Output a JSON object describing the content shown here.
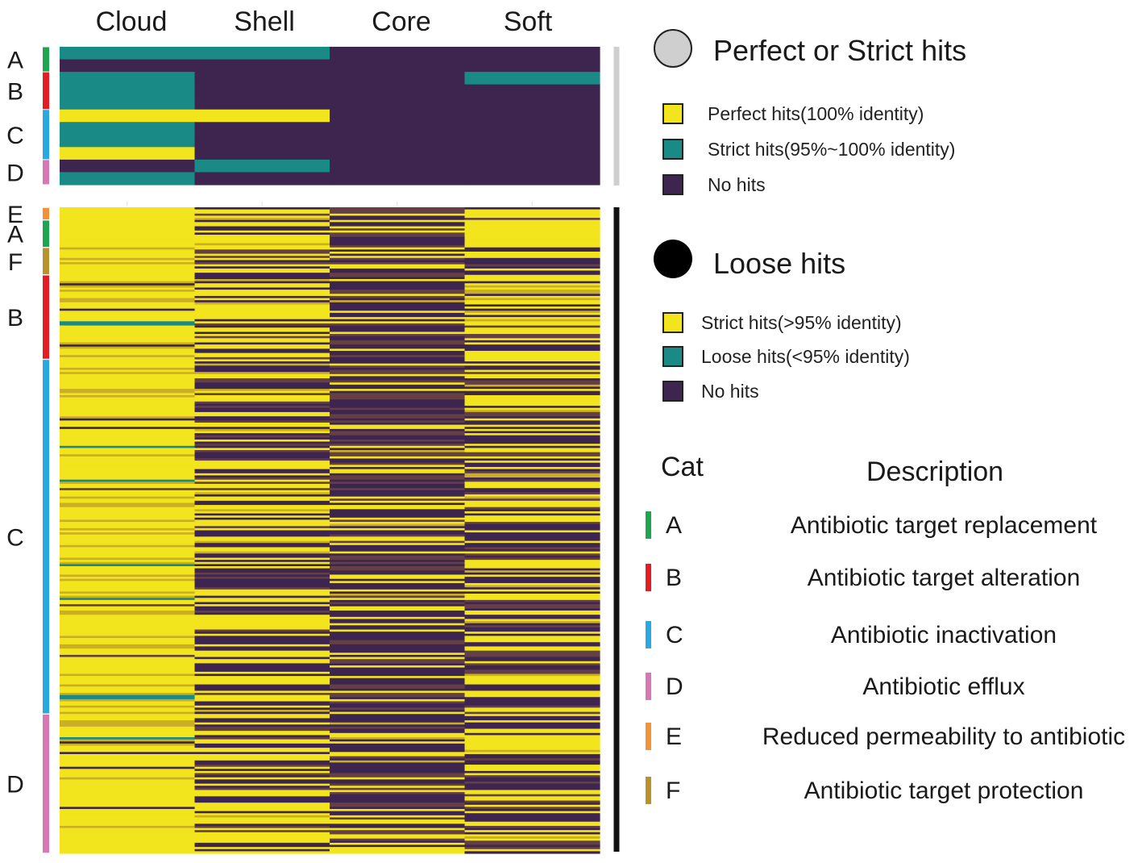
{
  "chart_data": [
    {
      "type": "heatmap",
      "name": "Perfect or Strict hits",
      "columns": [
        "Cloud",
        "Shell",
        "Core",
        "Soft"
      ],
      "value_legend": {
        "2": "Perfect hits(100% identity)",
        "1": "Strict hits(95%~100% identity)",
        "0": "No hits"
      },
      "row_categories": [
        "A",
        "A",
        "B",
        "B",
        "B",
        "C",
        "C",
        "C",
        "C",
        "D",
        "D"
      ],
      "rows": [
        [
          1,
          1,
          0,
          0
        ],
        [
          0,
          0,
          0,
          0
        ],
        [
          1,
          0,
          0,
          1
        ],
        [
          1,
          0,
          0,
          0
        ],
        [
          1,
          0,
          0,
          0
        ],
        [
          2,
          2,
          0,
          0
        ],
        [
          1,
          0,
          0,
          0
        ],
        [
          1,
          0,
          0,
          0
        ],
        [
          2,
          0,
          0,
          0
        ],
        [
          0,
          1,
          0,
          0
        ],
        [
          1,
          0,
          0,
          0
        ]
      ]
    },
    {
      "type": "heatmap",
      "name": "Loose hits",
      "columns": [
        "Cloud",
        "Shell",
        "Core",
        "Soft"
      ],
      "value_legend": {
        "2": "Strict hits(>95% identity)",
        "1": "Loose hits(<95% identity)",
        "0": "No hits"
      },
      "category_row_counts": {
        "E": 6,
        "A": 13,
        "F": 13,
        "B": 40,
        "C": 168,
        "D": 66
      },
      "approx_fraction_hits_by_category": {
        "E": [
          1.0,
          0.8,
          0.2,
          0.6
        ],
        "A": [
          1.0,
          0.75,
          0.3,
          0.7
        ],
        "F": [
          1.0,
          0.6,
          0.3,
          0.5
        ],
        "B": [
          0.95,
          0.6,
          0.25,
          0.65
        ],
        "C": [
          0.95,
          0.55,
          0.2,
          0.5
        ],
        "D": [
          0.95,
          0.6,
          0.25,
          0.45
        ]
      }
    }
  ],
  "figure": {
    "column_headers": [
      "Cloud",
      "Shell",
      "Core",
      "Soft"
    ],
    "top_row_labels": [
      "A",
      "B",
      "C",
      "D"
    ],
    "bottom_row_labels": [
      "E",
      "A",
      "F",
      "B",
      "C",
      "D"
    ]
  },
  "legend_strict": {
    "title": "Perfect or Strict hits",
    "items": [
      {
        "label": "Perfect hits(100% identity)",
        "color": "#f2e41d"
      },
      {
        "label": "Strict hits(95%~100% identity)",
        "color": "#1a8a86"
      },
      {
        "label": "No hits",
        "color": "#3e2550"
      }
    ]
  },
  "legend_loose": {
    "title": "Loose hits",
    "items": [
      {
        "label": "Strict hits(>95% identity)",
        "color": "#f2e41d"
      },
      {
        "label": "Loose hits(<95% identity)",
        "color": "#1a8a86"
      },
      {
        "label": "No hits",
        "color": "#3e2550"
      }
    ]
  },
  "category_legend": {
    "cat_header": "Cat",
    "desc_header": "Description",
    "items": [
      {
        "code": "A",
        "description": "Antibiotic target replacement",
        "color": "#1fa54f"
      },
      {
        "code": "B",
        "description": "Antibiotic target alteration",
        "color": "#e31d23"
      },
      {
        "code": "C",
        "description": "Antibiotic inactivation",
        "color": "#29a9e0"
      },
      {
        "code": "D",
        "description": "Antibiotic efflux",
        "color": "#d777b5"
      },
      {
        "code": "E",
        "description": "Reduced permeability to antibiotic",
        "color": "#f4923a"
      },
      {
        "code": "F",
        "description": "Antibiotic target protection",
        "color": "#b8922c"
      }
    ]
  },
  "colors": {
    "yellow": "#f2e41d",
    "teal": "#1a8a86",
    "purple": "#3e2550",
    "gray_bar": "#cfcfcf",
    "black_bar": "#111111"
  }
}
